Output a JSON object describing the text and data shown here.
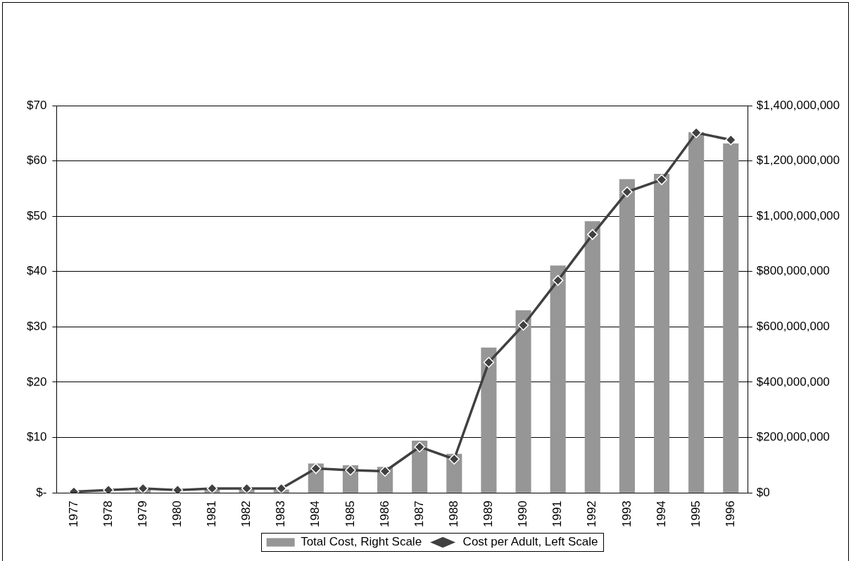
{
  "chart_data": {
    "type": "bar",
    "categories": [
      "1977",
      "1978",
      "1979",
      "1980",
      "1981",
      "1982",
      "1983",
      "1984",
      "1985",
      "1986",
      "1987",
      "1988",
      "1989",
      "1990",
      "1991",
      "1992",
      "1993",
      "1994",
      "1995",
      "1996"
    ],
    "series": [
      {
        "name": "Total Cost, Right Scale",
        "axis": "y2",
        "color": "#969696",
        "values": [
          null,
          null,
          12000000,
          null,
          12000000,
          12000000,
          12000000,
          106000000,
          100000000,
          94000000,
          189000000,
          141000000,
          525000000,
          660000000,
          822000000,
          982000000,
          1134000000,
          1153000000,
          1304000000,
          1263000000
        ]
      },
      {
        "name": "Cost per Adult, Left Scale",
        "type": "line",
        "axis": "y",
        "color": "#404040",
        "marker": "diamond",
        "values": [
          0.2,
          0.5,
          0.8,
          0.5,
          0.8,
          0.8,
          0.8,
          4.4,
          4.1,
          3.9,
          8.3,
          6.1,
          23.6,
          30.3,
          38.4,
          46.7,
          54.4,
          56.6,
          65.1,
          63.8
        ]
      }
    ],
    "ylim": [
      0,
      70
    ],
    "yticks": [
      {
        "value": 0,
        "label": "$-"
      },
      {
        "value": 10,
        "label": "$10"
      },
      {
        "value": 20,
        "label": "$20"
      },
      {
        "value": 30,
        "label": "$30"
      },
      {
        "value": 40,
        "label": "$40"
      },
      {
        "value": 50,
        "label": "$50"
      },
      {
        "value": 60,
        "label": "$60"
      },
      {
        "value": 70,
        "label": "$70"
      }
    ],
    "y2lim": [
      0,
      1400000000
    ],
    "y2ticks": [
      {
        "value": 0,
        "label": "$0"
      },
      {
        "value": 200000000,
        "label": "$200,000,000"
      },
      {
        "value": 400000000,
        "label": "$400,000,000"
      },
      {
        "value": 600000000,
        "label": "$600,000,000"
      },
      {
        "value": 800000000,
        "label": "$800,000,000"
      },
      {
        "value": 1000000000,
        "label": "$1,000,000,000"
      },
      {
        "value": 1200000000,
        "label": "$1,200,000,000"
      },
      {
        "value": 1400000000,
        "label": "$1,400,000,000"
      }
    ],
    "grid": "y",
    "legend": "bottom"
  }
}
